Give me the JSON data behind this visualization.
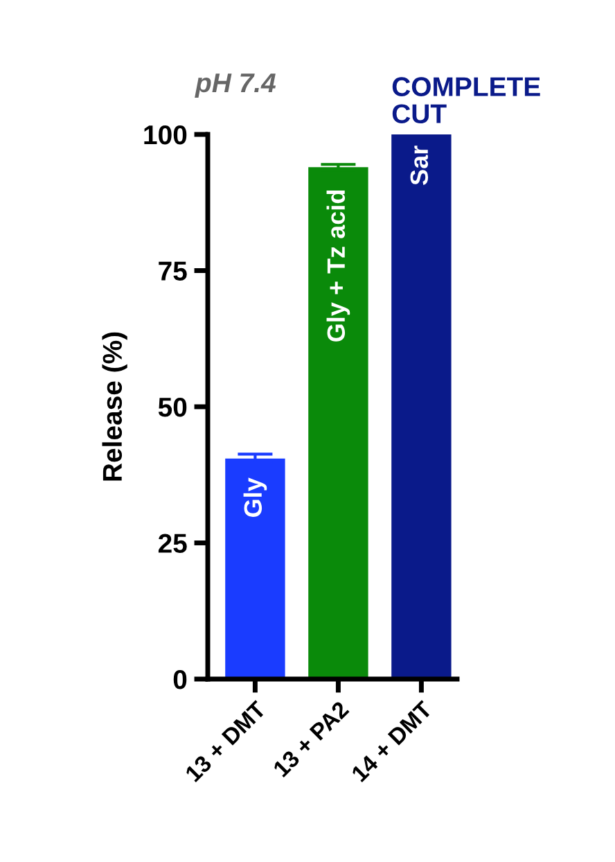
{
  "chart_data": {
    "type": "bar",
    "title": "pH 7.4",
    "ylabel": "Release (%)",
    "categories": [
      "13 + DMT",
      "13 + PA2",
      "14 + DMT"
    ],
    "values": [
      40.5,
      94,
      100
    ],
    "errors": [
      0.8,
      0.5,
      null
    ],
    "colors": [
      "#1a3cff",
      "#0a8a0a",
      "#0a1a8a"
    ],
    "ylim": [
      0,
      100
    ],
    "yticks": [
      0,
      25,
      50,
      75,
      100
    ],
    "grid": false,
    "legend": false,
    "annotations": [
      {
        "text": "Gly",
        "x": "13 + DMT",
        "y": 37
      },
      {
        "text": "Gly + Tz acid",
        "x": "13 + PA2",
        "y": 90
      },
      {
        "text": "Sar",
        "x": "14 + DMT",
        "y": 98
      },
      {
        "text": "COMPLETE\nCUT",
        "x": "14 + DMT",
        "y": 100
      }
    ]
  }
}
